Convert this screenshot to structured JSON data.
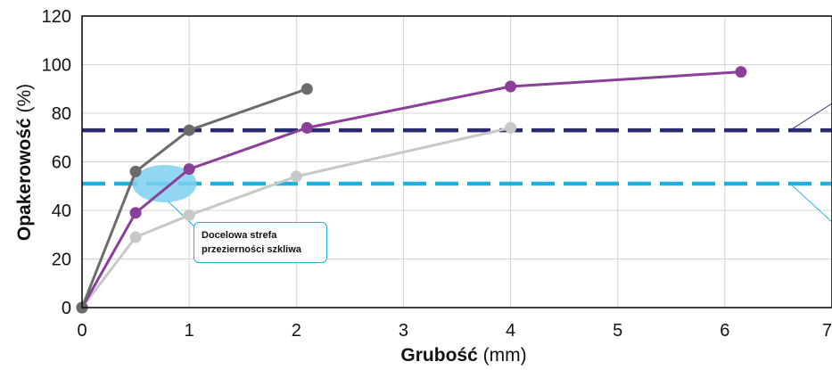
{
  "chart_data": {
    "type": "line",
    "xlabel_bold": "Grubość",
    "xlabel_unit": "(mm)",
    "ylabel_bold": "Opakerowość",
    "ylabel_unit": "(%)",
    "xlim": [
      0,
      7
    ],
    "ylim": [
      0,
      120
    ],
    "xticks": [
      "0",
      "1",
      "2",
      "3",
      "4",
      "5",
      "6",
      "7"
    ],
    "yticks": [
      "0",
      "20",
      "40",
      "60",
      "80",
      "100",
      "120"
    ],
    "grid": true,
    "series": [
      {
        "color": "#6b6b6b",
        "x": [
          0,
          0.5,
          1.0,
          2.1
        ],
        "y": [
          0,
          56,
          73,
          90
        ]
      },
      {
        "color": "#8a3f98",
        "x": [
          0,
          0.5,
          1.0,
          2.1,
          4.0,
          6.15
        ],
        "y": [
          0,
          39,
          57,
          74,
          91,
          97
        ]
      },
      {
        "color": "#c8c8c8",
        "x": [
          0,
          0.5,
          1.0,
          2.0,
          4.0
        ],
        "y": [
          0,
          29,
          38,
          54,
          74
        ]
      }
    ],
    "reference_lines": [
      {
        "y": 73,
        "color": "#2a2a6e"
      },
      {
        "y": 51,
        "color": "#1fb2de"
      }
    ],
    "target_zone": {
      "x_center": 0.77,
      "y_center": 51,
      "color": "#7fd0ef"
    },
    "annotation": {
      "line1": "Docelowa strefa",
      "line2": "przezierności szkliwa"
    }
  }
}
